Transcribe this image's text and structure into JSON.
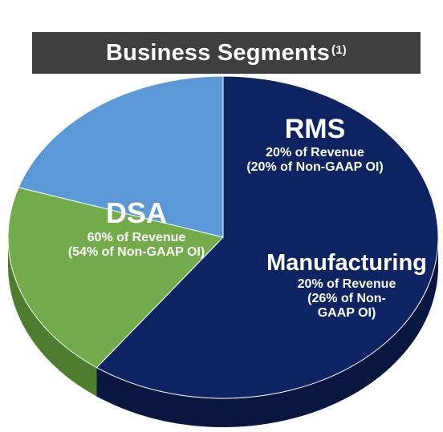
{
  "chart_data": {
    "type": "pie",
    "title": "Business Segments",
    "title_superscript": "(1)",
    "slices": [
      {
        "name": "DSA",
        "value": 60,
        "revenue_label": "60% of Revenue",
        "oi_label": "(54% of Non-GAAP OI)",
        "color": "#0e2462",
        "side_color": "#081640"
      },
      {
        "name": "RMS",
        "value": 20,
        "revenue_label": "20% of Revenue",
        "oi_label": "(20% of Non-GAAP OI)",
        "color": "#72ab4a",
        "side_color": "#4e7d30"
      },
      {
        "name": "Manufacturing",
        "value": 20,
        "revenue_label": "20% of Revenue",
        "oi_label_line1": "(26% of Non-",
        "oi_label_line2": "GAAP OI)",
        "color": "#5b98d8",
        "side_color": "#33639a"
      }
    ]
  }
}
